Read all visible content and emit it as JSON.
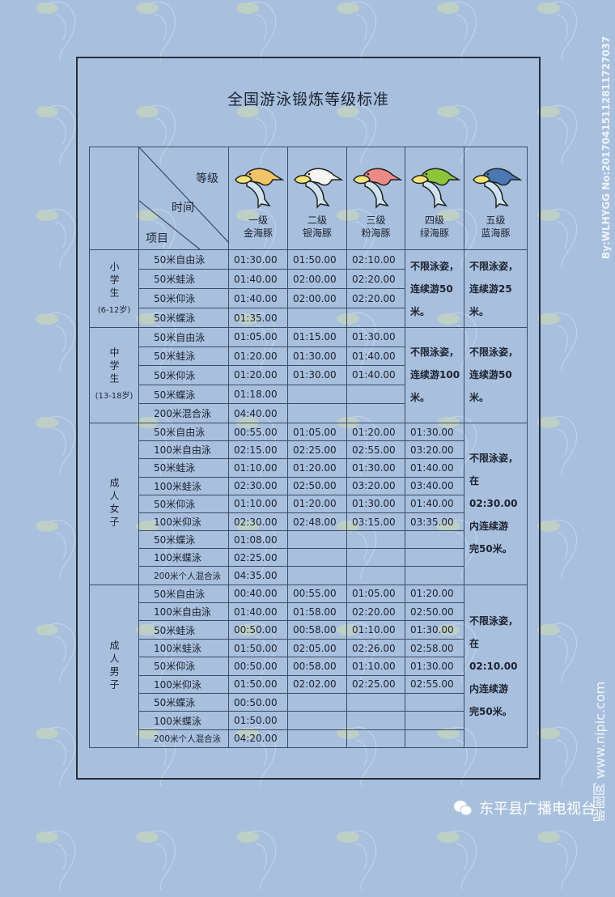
{
  "title": "全国游泳锻炼等级标准",
  "header": {
    "grade_label": "等级",
    "time_label": "时间",
    "item_label": "项目"
  },
  "grades": [
    {
      "level": "一级",
      "name": "金海豚",
      "color": "#f2c46a"
    },
    {
      "level": "二级",
      "name": "银海豚",
      "color": "#f4f4f2"
    },
    {
      "level": "三级",
      "name": "粉海豚",
      "color": "#ec8a87"
    },
    {
      "level": "四级",
      "name": "绿海豚",
      "color": "#8cc43c"
    },
    {
      "level": "五级",
      "name": "蓝海豚",
      "color": "#4a78b4"
    }
  ],
  "groups": [
    {
      "name": "小学生",
      "age": "(6-12岁)",
      "rows": [
        {
          "item": "50米自由泳",
          "times": [
            "01:30.00",
            "01:50.00",
            "02:10.00"
          ]
        },
        {
          "item": "50米蛙泳",
          "times": [
            "01:40.00",
            "02:00.00",
            "02:20.00"
          ]
        },
        {
          "item": "50米仰泳",
          "times": [
            "01:40.00",
            "02:00.00",
            "02:20.00"
          ]
        },
        {
          "item": "50米蝶泳",
          "times": [
            "01:35.00",
            "",
            ""
          ]
        }
      ],
      "note4": [
        "不限泳姿，",
        "连续游50",
        "米。"
      ],
      "note5": [
        "不限泳姿，",
        "连续游25",
        "米。"
      ]
    },
    {
      "name": "中学生",
      "age": "(13-18岁)",
      "rows": [
        {
          "item": "50米自由泳",
          "times": [
            "01:05.00",
            "01:15.00",
            "01:30.00"
          ]
        },
        {
          "item": "50米蛙泳",
          "times": [
            "01:20.00",
            "01:30.00",
            "01:40.00"
          ]
        },
        {
          "item": "50米仰泳",
          "times": [
            "01:20.00",
            "01:30.00",
            "01:40.00"
          ]
        },
        {
          "item": "50米蝶泳",
          "times": [
            "01:18.00",
            "",
            ""
          ]
        },
        {
          "item": "200米混合泳",
          "times": [
            "04:40.00",
            "",
            ""
          ]
        }
      ],
      "note4": [
        "不限泳姿，",
        "连续游100",
        "米。"
      ],
      "note5": [
        "不限泳姿，",
        "连续游50",
        "米。"
      ]
    },
    {
      "name": "成人女子",
      "age": "",
      "rows": [
        {
          "item": "50米自由泳",
          "times": [
            "00:55.00",
            "01:05.00",
            "01:20.00",
            "01:30.00"
          ]
        },
        {
          "item": "100米自由泳",
          "times": [
            "02:15.00",
            "02:25.00",
            "02:55.00",
            "03:20.00"
          ]
        },
        {
          "item": "50米蛙泳",
          "times": [
            "01:10.00",
            "01:20.00",
            "01:30.00",
            "01:40.00"
          ]
        },
        {
          "item": "100米蛙泳",
          "times": [
            "02:30.00",
            "02:50.00",
            "03:20.00",
            "03:40.00"
          ]
        },
        {
          "item": "50米仰泳",
          "times": [
            "01:10.00",
            "01:20.00",
            "01:30.00",
            "01:40.00"
          ]
        },
        {
          "item": "100米仰泳",
          "times": [
            "02:30.00",
            "02:48.00",
            "03:15.00",
            "03:35.00"
          ]
        },
        {
          "item": "50米蝶泳",
          "times": [
            "01:08.00",
            "",
            "",
            ""
          ]
        },
        {
          "item": "100米蝶泳",
          "times": [
            "02:25.00",
            "",
            "",
            ""
          ]
        },
        {
          "item": "200米个人混合泳",
          "times": [
            "04:35.00",
            "",
            "",
            ""
          ]
        }
      ],
      "note5": [
        "不限泳姿，",
        "在02:30.00",
        "内连续游",
        "完50米。"
      ]
    },
    {
      "name": "成人男子",
      "age": "",
      "rows": [
        {
          "item": "50米自由泳",
          "times": [
            "00:40.00",
            "00:55.00",
            "01:05.00",
            "01:20.00"
          ]
        },
        {
          "item": "100米自由泳",
          "times": [
            "01:40.00",
            "01:58.00",
            "02:20.00",
            "02:50.00"
          ]
        },
        {
          "item": "50米蛙泳",
          "times": [
            "00:50.00",
            "00:58.00",
            "01:10.00",
            "01:30.00"
          ]
        },
        {
          "item": "100米蛙泳",
          "times": [
            "01:50.00",
            "02:05.00",
            "02:26.00",
            "02:58.00"
          ]
        },
        {
          "item": "50米仰泳",
          "times": [
            "00:50.00",
            "00:58.00",
            "01:10.00",
            "01:30.00"
          ]
        },
        {
          "item": "100米仰泳",
          "times": [
            "01:50.00",
            "02:02.00",
            "02:25.00",
            "02:55.00"
          ]
        },
        {
          "item": "50米蝶泳",
          "times": [
            "00:50.00",
            "",
            "",
            ""
          ]
        },
        {
          "item": "100米蝶泳",
          "times": [
            "01:50.00",
            "",
            "",
            ""
          ]
        },
        {
          "item": "200米个人混合泳",
          "times": [
            "04:20.00",
            "",
            "",
            ""
          ]
        }
      ],
      "note5": [
        "不限泳姿，",
        "在02:10.00",
        "内连续游",
        "完50米。"
      ]
    }
  ],
  "watermarks": {
    "author": "By:WLHYGG No:20170415112811727037",
    "site": "昵图网 www.nipic.com",
    "wechat": "东平县广播电视台"
  }
}
